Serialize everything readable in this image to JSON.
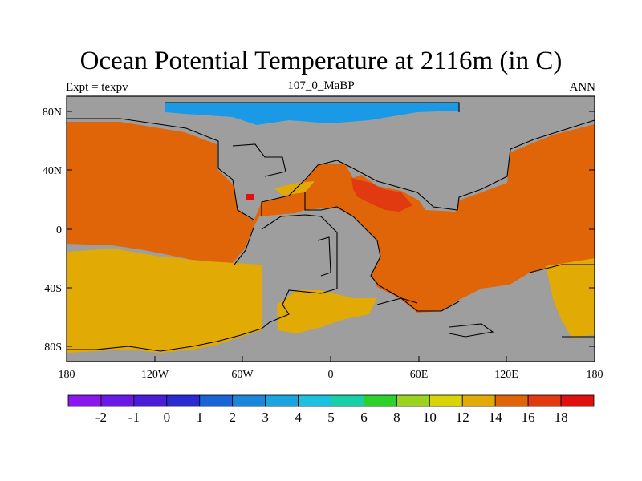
{
  "title": "Ocean Potential Temperature at 2116m (in C)",
  "left_label": "Expt = texpv",
  "center_label": "107_0_MaBP",
  "right_label": "ANN",
  "x_ticks": [
    "180",
    "120W",
    "60W",
    "0",
    "60E",
    "120E",
    "180"
  ],
  "y_ticks": [
    "80N",
    "40N",
    "0",
    "40S",
    "80S"
  ],
  "colorbar": {
    "labels": [
      "-2",
      "-1",
      "0",
      "1",
      "2",
      "3",
      "4",
      "5",
      "6",
      "8",
      "10",
      "12",
      "14",
      "16",
      "18"
    ],
    "colors": [
      "#8a18ee",
      "#6a1ae6",
      "#4a1ed8",
      "#2a2ad2",
      "#1a64da",
      "#1a86dc",
      "#1aa4e0",
      "#1ac2e0",
      "#18d0a8",
      "#2ad22a",
      "#9ad41e",
      "#d8d406",
      "#e2aa04",
      "#e06408",
      "#e23a10",
      "#e01010"
    ]
  },
  "colors": {
    "land": "#9e9e9e",
    "warm14": "#e2aa04",
    "warm16": "#e06408",
    "warm18": "#e23a10",
    "hot": "#e01010",
    "cold": "#1a9ae6"
  }
}
